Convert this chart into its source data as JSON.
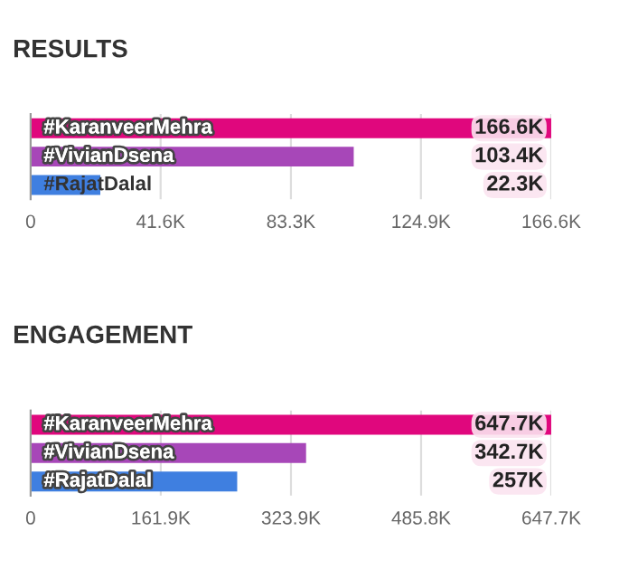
{
  "chart_data": [
    {
      "type": "bar",
      "title": "RESULTS",
      "orientation": "horizontal",
      "categories": [
        "#KaranveerMehra",
        "#VivianDsena",
        "#RajatDalal"
      ],
      "values": [
        166600,
        103400,
        22300
      ],
      "colors": [
        "#e0077d",
        "#a747b8",
        "#3f7fe0"
      ],
      "value_labels": [
        "166.6K",
        "103.4K",
        "22.3K"
      ],
      "xlim": [
        0,
        166600
      ],
      "xticks": [
        0,
        {
          "value": 41600,
          "label": "41.6K"
        },
        {
          "value": 83300,
          "label": "83.3K"
        },
        {
          "value": 124900,
          "label": "124.9K"
        },
        {
          "value": 166600,
          "label": "166.6K"
        }
      ],
      "grid": "x"
    },
    {
      "type": "bar",
      "title": "ENGAGEMENT",
      "orientation": "horizontal",
      "categories": [
        "#KaranveerMehra",
        "#VivianDsena",
        "#RajatDalal"
      ],
      "values": [
        647700,
        342700,
        257000
      ],
      "colors": [
        "#e0077d",
        "#a747b8",
        "#3f7fe0"
      ],
      "value_labels": [
        "647.7K",
        "342.7K",
        "257K"
      ],
      "xlim": [
        0,
        647700
      ],
      "xticks": [
        0,
        {
          "value": 161900,
          "label": "161.9K"
        },
        {
          "value": 323900,
          "label": "323.9K"
        },
        {
          "value": 485800,
          "label": "485.8K"
        },
        {
          "value": 647700,
          "label": "647.7K"
        }
      ],
      "grid": "x"
    }
  ]
}
